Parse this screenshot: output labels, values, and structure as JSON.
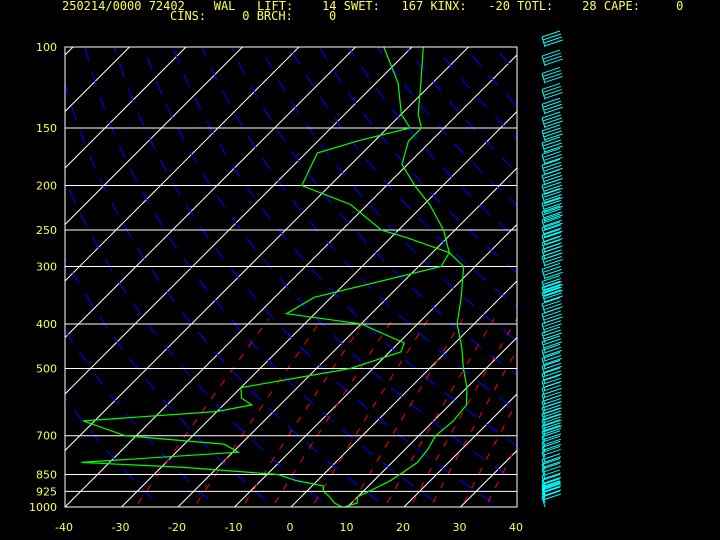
{
  "header": {
    "line1": "250214/0000 72402    WAL   LIFT:    14 SWET:   167 KINX:   -20 TOTL:    28 CAPE:     0",
    "line2": "CINS:     0 BRCH:     0"
  },
  "colors": {
    "background": "#000000",
    "text": "#ffff55",
    "grid": "#ffffff",
    "isotherms": "#ffffff",
    "dry_adiabats": "#0000ff",
    "mixing_ratio": "#ff0000",
    "profile": "#00ff00",
    "wind_barbs": "#00ffff"
  },
  "chart_data": {
    "type": "skew-t log-p sounding",
    "station": "72402",
    "xlim": [
      -40,
      40
    ],
    "pressure_range": [
      1000,
      100
    ],
    "x_ticks": [
      "-40",
      "-30",
      "-20",
      "-10",
      "0",
      "10",
      "20",
      "30",
      "40"
    ],
    "y_ticks": [
      "100",
      "150",
      "200",
      "250",
      "300",
      "400",
      "500",
      "700",
      "850",
      "925",
      "1000"
    ],
    "temperature_profile": [
      [
        1000,
        9.5
      ],
      [
        980,
        11
      ],
      [
        950,
        10
      ],
      [
        925,
        11
      ],
      [
        900,
        12
      ],
      [
        875,
        13
      ],
      [
        850,
        13.5
      ],
      [
        800,
        14.5
      ],
      [
        750,
        14
      ],
      [
        700,
        13
      ],
      [
        650,
        13.5
      ],
      [
        600,
        13
      ],
      [
        550,
        10
      ],
      [
        500,
        6
      ],
      [
        450,
        2
      ],
      [
        400,
        -3
      ],
      [
        350,
        -7
      ],
      [
        300,
        -12
      ],
      [
        280,
        -17
      ],
      [
        250,
        -22
      ],
      [
        220,
        -29
      ],
      [
        200,
        -35
      ],
      [
        180,
        -41
      ],
      [
        160,
        -44
      ],
      [
        150,
        -44
      ],
      [
        140,
        -47
      ],
      [
        120,
        -52
      ],
      [
        100,
        -58
      ]
    ],
    "dewpoint_profile": [
      [
        1000,
        9
      ],
      [
        980,
        7
      ],
      [
        950,
        5
      ],
      [
        925,
        3
      ],
      [
        900,
        2
      ],
      [
        875,
        -4
      ],
      [
        850,
        -8
      ],
      [
        820,
        -26
      ],
      [
        800,
        -45
      ],
      [
        760,
        -19
      ],
      [
        730,
        -23
      ],
      [
        700,
        -42
      ],
      [
        650,
        -52
      ],
      [
        620,
        -30
      ],
      [
        600,
        -25
      ],
      [
        580,
        -28
      ],
      [
        550,
        -30
      ],
      [
        500,
        -14
      ],
      [
        460,
        -8
      ],
      [
        440,
        -9
      ],
      [
        400,
        -20
      ],
      [
        380,
        -35
      ],
      [
        350,
        -33
      ],
      [
        300,
        -16
      ],
      [
        280,
        -17
      ],
      [
        260,
        -27
      ],
      [
        250,
        -33
      ],
      [
        220,
        -43
      ],
      [
        200,
        -55
      ],
      [
        170,
        -58
      ],
      [
        160,
        -53
      ],
      [
        150,
        -46
      ],
      [
        140,
        -50
      ],
      [
        120,
        -56
      ],
      [
        100,
        -65
      ]
    ],
    "wind_pressures": [
      1000,
      980,
      960,
      950,
      940,
      920,
      900,
      870,
      850,
      830,
      800,
      780,
      760,
      740,
      720,
      700,
      680,
      660,
      640,
      620,
      600,
      580,
      560,
      540,
      520,
      500,
      480,
      460,
      440,
      420,
      400,
      380,
      360,
      350,
      340,
      320,
      300,
      290,
      280,
      270,
      260,
      250,
      240,
      230,
      220,
      210,
      200,
      190,
      180,
      170,
      160,
      150,
      140,
      130,
      120,
      110,
      100
    ]
  }
}
